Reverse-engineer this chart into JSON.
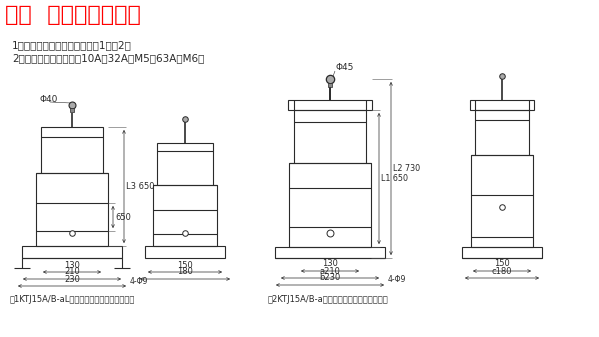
{
  "title": "三．  外形及安装尺寸",
  "title_color": "#FF0000",
  "bg_color": "#FFFFFF",
  "text_color": "#222222",
  "line1": "1、控制器的外形安装尺寸见图1、图2；",
  "line2": "2、触头元件的接线螺钉10A、32A为M5，63A为M6。",
  "caption1": "图1KTJ15A/B-aL型凸轮控制器支装和外形尺寸",
  "caption2": "图2KTJ15A/B-a型凸轮控制器支装和外形尺寸"
}
